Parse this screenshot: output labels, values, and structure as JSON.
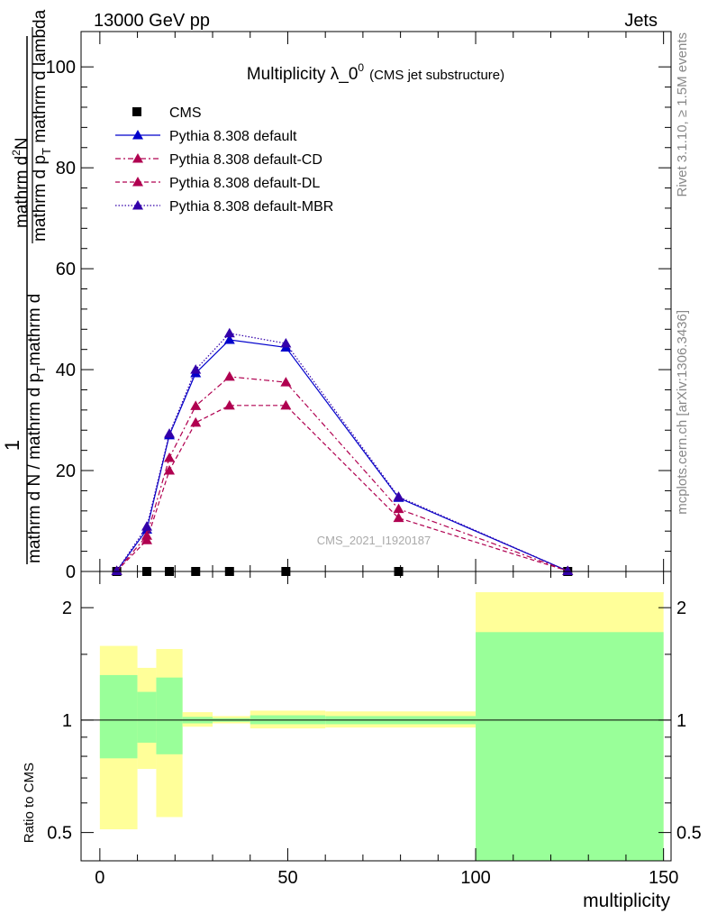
{
  "header": {
    "left": "13000 GeV pp",
    "right": "Jets"
  },
  "side_text": {
    "top": "Rivet 3.1.10, ≥ 1.5M events",
    "bottom": "mcplots.cern.ch [arXiv:1306.3436]"
  },
  "watermark": "CMS_2021_I1920187",
  "ratio_ylabel": "Ratio to CMS",
  "colors": {
    "yellow": "#ffff99",
    "green": "#99ff99",
    "navy": "#0000cc",
    "crimson": "#b00050",
    "violet": "#3300aa"
  },
  "chart_data": [
    {
      "type": "line",
      "title": "Multiplicity λ_0",
      "title_sup": "0",
      "title_suffix": "(CMS jet substructure)",
      "ylabel": "1 / (mathrm d N / mathrm d p_T) · mathrm d²N / (mathrm d p_T mathrm d lambda)",
      "ylabel_parts": {
        "one": "1",
        "den_a": "mathrm d N / mathrm d p",
        "den_sub": "T",
        "den_b": "mathrm d",
        "num_a": "mathrm d",
        "num_sup": "2",
        "num_b": "N",
        "den2_a": "mathrm d p",
        "den2_sub": "T",
        "den2_b": " mathrm d lambda"
      },
      "xlim": [
        -5,
        152
      ],
      "ylim": [
        0,
        107
      ],
      "yticks": [
        0,
        20,
        40,
        60,
        80,
        100
      ],
      "grid": false,
      "legend_position": "top-left",
      "x": [
        4.5,
        12.5,
        18.5,
        25.5,
        34.5,
        49.5,
        79.5,
        124.5
      ],
      "series": [
        {
          "name": "CMS",
          "marker": "square",
          "color": "#000000",
          "values": [
            0.0,
            0.0,
            0.0,
            0.0,
            0.0,
            0.0,
            0.0,
            0.0
          ]
        },
        {
          "name": "Pythia 8.308 default",
          "marker": "triangle",
          "dash": "solid",
          "color": "#0000cc",
          "values": [
            0.1,
            8.3,
            27.0,
            39.3,
            45.9,
            44.4,
            14.6,
            0.1
          ]
        },
        {
          "name": "Pythia 8.308 default-CD",
          "marker": "triangle",
          "dash": "6,3,2,3",
          "color": "#b00050",
          "values": [
            0.1,
            7.1,
            22.5,
            32.8,
            38.6,
            37.5,
            12.4,
            0.1
          ]
        },
        {
          "name": "Pythia 8.308 default-DL",
          "marker": "triangle",
          "dash": "5,3",
          "color": "#b00050",
          "values": [
            0.1,
            6.2,
            20.0,
            29.5,
            32.9,
            32.9,
            10.6,
            0.1
          ]
        },
        {
          "name": "Pythia 8.308 default-MBR",
          "marker": "triangle",
          "dash": "1.5,2",
          "color": "#3300aa",
          "values": [
            0.1,
            8.9,
            27.3,
            40.0,
            47.2,
            45.2,
            14.8,
            0.1
          ]
        }
      ]
    },
    {
      "type": "area",
      "ylabel": "Ratio to CMS",
      "xlabel": "multiplicity",
      "scale": "log",
      "xlim": [
        -5,
        152
      ],
      "ylim": [
        0.42,
        2.5
      ],
      "yticks": [
        0.5,
        1,
        2
      ],
      "xticks": [
        0,
        50,
        100,
        150
      ],
      "reference_line": 1,
      "bands": [
        {
          "x0": 0,
          "x1": 10,
          "yellow": [
            0.51,
            1.58
          ],
          "green": [
            0.79,
            1.32
          ]
        },
        {
          "x0": 10,
          "x1": 15,
          "yellow": [
            0.74,
            1.38
          ],
          "green": [
            0.87,
            1.19
          ]
        },
        {
          "x0": 15,
          "x1": 22,
          "yellow": [
            0.55,
            1.55
          ],
          "green": [
            0.81,
            1.3
          ]
        },
        {
          "x0": 22,
          "x1": 30,
          "yellow": [
            0.96,
            1.05
          ],
          "green": [
            0.98,
            1.02
          ]
        },
        {
          "x0": 30,
          "x1": 40,
          "yellow": [
            0.98,
            1.025
          ],
          "green": [
            0.99,
            1.012
          ]
        },
        {
          "x0": 40,
          "x1": 60,
          "yellow": [
            0.95,
            1.06
          ],
          "green": [
            0.975,
            1.03
          ]
        },
        {
          "x0": 60,
          "x1": 100,
          "yellow": [
            0.955,
            1.055
          ],
          "green": [
            0.975,
            1.025
          ]
        },
        {
          "x0": 100,
          "x1": 150,
          "yellow": [
            0.42,
            2.2
          ],
          "green": [
            0.42,
            1.72
          ]
        }
      ]
    }
  ]
}
